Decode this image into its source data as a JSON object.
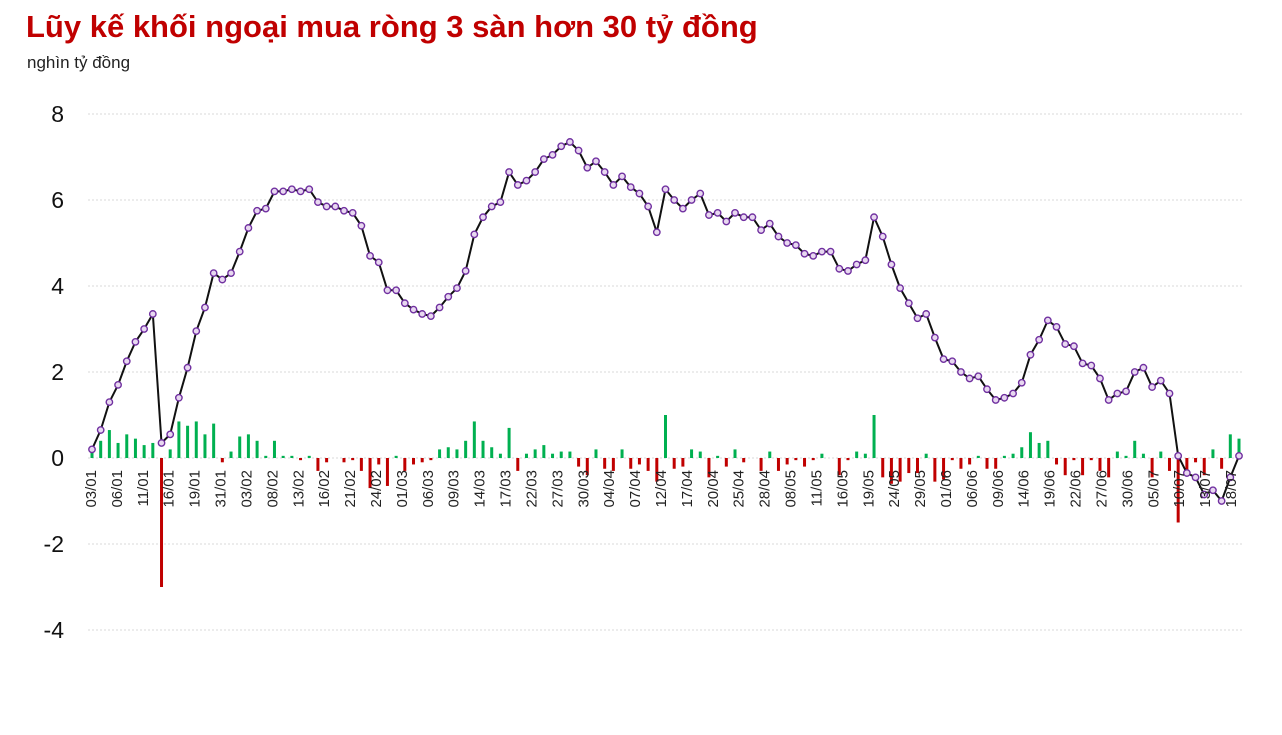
{
  "title": "Lũy kế khối ngoại mua ròng 3 sàn hơn 30 tỷ đồng",
  "unit_label": "nghìn tỷ đồng",
  "colors": {
    "title": "#c00000",
    "buy_bar": "#00b050",
    "sell_bar": "#c00000",
    "line": "#111111",
    "marker_stroke": "#7030a0",
    "marker_fill": "#e8d8f0",
    "grid": "#d9d9d9"
  },
  "chart_data": {
    "type": "bar+line",
    "title": "Lũy kế khối ngoại mua ròng 3 sàn hơn 30 tỷ đồng",
    "ylabel": "nghìn tỷ đồng",
    "ylim": [
      -4,
      8
    ],
    "yticks": [
      8,
      6,
      4,
      2,
      0,
      -2,
      -4
    ],
    "grid": true,
    "x_tick_labels": [
      "03/01",
      "06/01",
      "11/01",
      "16/01",
      "19/01",
      "31/01",
      "03/02",
      "08/02",
      "13/02",
      "16/02",
      "21/02",
      "24/02",
      "01/03",
      "06/03",
      "09/03",
      "14/03",
      "17/03",
      "22/03",
      "27/03",
      "30/03",
      "04/04",
      "07/04",
      "12/04",
      "17/04",
      "20/04",
      "25/04",
      "28/04",
      "08/05",
      "11/05",
      "16/05",
      "19/05",
      "24/05",
      "29/05",
      "01/06",
      "06/06",
      "09/06",
      "14/06",
      "19/06",
      "22/06",
      "27/06",
      "30/06",
      "05/07",
      "10/07",
      "13/07",
      "18/07"
    ],
    "series": [
      {
        "name": "",
        "type": "line",
        "values": [
          0.2,
          0.65,
          1.3,
          1.7,
          2.25,
          2.7,
          3.0,
          3.35,
          0.35,
          0.55,
          1.4,
          2.1,
          2.95,
          3.5,
          4.3,
          4.15,
          4.3,
          4.8,
          5.35,
          5.75,
          5.8,
          6.2,
          6.2,
          6.25,
          6.2,
          6.25,
          5.95,
          5.85,
          5.85,
          5.75,
          5.7,
          5.4,
          4.7,
          4.55,
          3.9,
          3.9,
          3.6,
          3.45,
          3.35,
          3.3,
          3.5,
          3.75,
          3.95,
          4.35,
          5.2,
          5.6,
          5.85,
          5.95,
          6.65,
          6.35,
          6.45,
          6.65,
          6.95,
          7.05,
          7.25,
          7.35,
          7.15,
          6.75,
          6.9,
          6.65,
          6.35,
          6.55,
          6.3,
          6.15,
          5.85,
          5.25,
          6.25,
          6.0,
          5.8,
          6.0,
          6.15,
          5.65,
          5.7,
          5.5,
          5.7,
          5.6,
          5.6,
          5.3,
          5.45,
          5.15,
          5.0,
          4.95,
          4.75,
          4.7,
          4.8,
          4.8,
          4.4,
          4.35,
          4.5,
          4.6,
          5.6,
          5.15,
          4.5,
          3.95,
          3.6,
          3.25,
          3.35,
          2.8,
          2.3,
          2.25,
          2.0,
          1.85,
          1.9,
          1.6,
          1.35,
          1.4,
          1.5,
          1.75,
          2.4,
          2.75,
          3.2,
          3.05,
          2.65,
          2.6,
          2.2,
          2.15,
          1.85,
          1.35,
          1.5,
          1.55,
          2.0,
          2.1,
          1.65,
          1.8,
          1.5,
          0.05,
          -0.35,
          -0.45,
          -0.85,
          -0.75,
          -1.0,
          -0.45,
          0.05
        ]
      },
      {
        "name": "",
        "type": "bar",
        "values": [
          0.25,
          0.4,
          0.65,
          0.35,
          0.55,
          0.45,
          0.3,
          0.35,
          -3.0,
          0.2,
          0.85,
          0.75,
          0.85,
          0.55,
          0.8,
          -0.1,
          0.15,
          0.5,
          0.55,
          0.4,
          0.05,
          0.4,
          0.05,
          0.05,
          -0.05,
          0.05,
          -0.3,
          -0.1,
          0.0,
          -0.1,
          -0.05,
          -0.3,
          -0.7,
          -0.15,
          -0.65,
          0.05,
          -0.3,
          -0.15,
          -0.1,
          -0.05,
          0.2,
          0.25,
          0.2,
          0.4,
          0.85,
          0.4,
          0.25,
          0.1,
          0.7,
          -0.3,
          0.1,
          0.2,
          0.3,
          0.1,
          0.15,
          0.15,
          -0.2,
          -0.4,
          0.2,
          -0.25,
          -0.3,
          0.2,
          -0.25,
          -0.15,
          -0.3,
          -0.55,
          1.0,
          -0.25,
          -0.2,
          0.2,
          0.15,
          -0.45,
          0.05,
          -0.2,
          0.2,
          -0.1,
          0.0,
          -0.3,
          0.15,
          -0.3,
          -0.15,
          -0.05,
          -0.2,
          -0.05,
          0.1,
          0.0,
          -0.4,
          -0.05,
          0.15,
          0.1,
          1.0,
          -0.45,
          -0.6,
          -0.55,
          -0.35,
          -0.35,
          0.1,
          -0.55,
          -0.5,
          -0.05,
          -0.25,
          -0.15,
          0.05,
          -0.25,
          -0.25,
          0.05,
          0.1,
          0.25,
          0.6,
          0.35,
          0.4,
          -0.15,
          -0.4,
          -0.05,
          -0.4,
          -0.05,
          -0.3,
          -0.45,
          0.15,
          0.05,
          0.4,
          0.1,
          -0.45,
          0.15,
          -0.3,
          -1.5,
          -0.4,
          -0.1,
          -0.4,
          0.2,
          -0.25,
          0.55,
          0.45
        ]
      }
    ]
  }
}
